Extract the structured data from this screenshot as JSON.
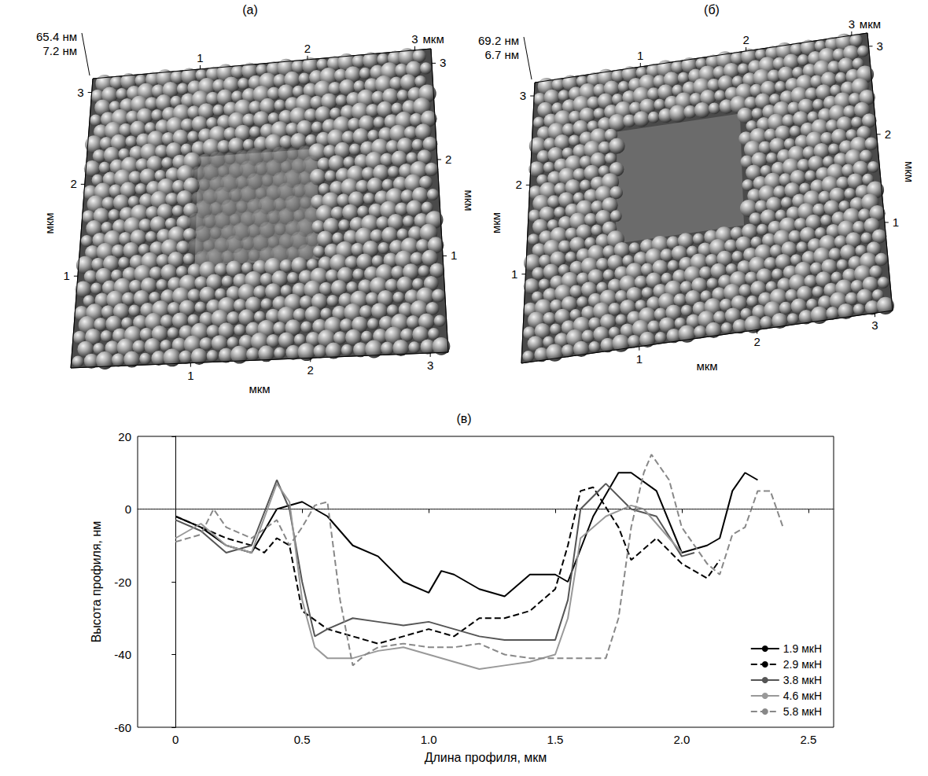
{
  "panels": [
    {
      "label": "(а)",
      "type": "afm_3d",
      "z_labels": [
        "65.4 нм",
        "7.2 нм"
      ],
      "xlim": [
        0,
        3.15
      ],
      "ylim": [
        0,
        3.15
      ],
      "xticks": [
        1,
        2,
        3
      ],
      "yticks": [
        1,
        2,
        3
      ],
      "x_unit": "мкм",
      "y_unit": "мкм"
    },
    {
      "label": "(б)",
      "type": "afm_3d",
      "z_labels": [
        "69.2 нм",
        "6.7 нм"
      ],
      "xlim": [
        0,
        3.15
      ],
      "ylim": [
        0,
        3.15
      ],
      "xticks": [
        1,
        2,
        3
      ],
      "yticks": [
        1,
        2,
        3
      ],
      "x_unit": "мкм",
      "y_unit": "мкм"
    }
  ],
  "chart_data": {
    "type": "line",
    "title": "(в)",
    "x_label": "Длина профиля, мкм",
    "y_label": "Высота профиля, нм",
    "xlim": [
      -0.15,
      2.6
    ],
    "xticks": [
      0,
      0.5,
      {
        "value": 1,
        "label": "1.0"
      },
      1.5,
      {
        "value": 2,
        "label": "2.0"
      },
      2.5
    ],
    "ylim": [
      -60,
      20
    ],
    "yticks": [
      -60,
      -40,
      -20,
      0,
      20
    ],
    "reference_y": 0,
    "grid": false,
    "legend": "lower right",
    "series": [
      {
        "name": "1.9 мкН",
        "color": "#000000",
        "line_style": "solid",
        "x": [
          0,
          0.1,
          0.2,
          0.3,
          0.4,
          0.5,
          0.6,
          0.7,
          0.8,
          0.9,
          1.0,
          1.05,
          1.1,
          1.2,
          1.3,
          1.4,
          1.5,
          1.55,
          1.65,
          1.75,
          1.8,
          1.9,
          2.0,
          2.1,
          2.15,
          2.2,
          2.25,
          2.3
        ],
        "values": [
          -2,
          -5,
          -10,
          -12,
          0,
          2,
          -2,
          -10,
          -13,
          -20,
          -23,
          -17,
          -18,
          -22,
          -24,
          -18,
          -18,
          -20,
          -2,
          10,
          10,
          5,
          -12,
          -10,
          -8,
          5,
          10,
          8
        ]
      },
      {
        "name": "2.9 мкН",
        "color": "#000000",
        "line_style": "dashed",
        "x": [
          0,
          0.1,
          0.2,
          0.3,
          0.35,
          0.4,
          0.45,
          0.5,
          0.6,
          0.7,
          0.8,
          0.9,
          1.0,
          1.1,
          1.2,
          1.3,
          1.4,
          1.5,
          1.55,
          1.6,
          1.65,
          1.75,
          1.8,
          1.9,
          2.0,
          2.1,
          2.15
        ],
        "values": [
          -2,
          -5,
          -8,
          -10,
          -12,
          -8,
          -10,
          -28,
          -33,
          -35,
          -37,
          -35,
          -33,
          -35,
          -30,
          -30,
          -28,
          -22,
          -10,
          5,
          6,
          -5,
          -14,
          -8,
          -15,
          -19,
          -14
        ]
      },
      {
        "name": "3.8 мкН",
        "color": "#555555",
        "line_style": "solid",
        "x": [
          0,
          0.1,
          0.2,
          0.3,
          0.4,
          0.45,
          0.5,
          0.55,
          0.6,
          0.7,
          0.8,
          0.9,
          1.0,
          1.1,
          1.2,
          1.3,
          1.4,
          1.5,
          1.55,
          1.6,
          1.7,
          1.8,
          1.9,
          2.0,
          2.05
        ],
        "values": [
          -3,
          -6,
          -12,
          -10,
          8,
          0,
          -20,
          -35,
          -33,
          -30,
          -31,
          -32,
          -31,
          -33,
          -35,
          -36,
          -36,
          -36,
          -25,
          0,
          7,
          0,
          -2,
          -13,
          -12
        ]
      },
      {
        "name": "4.6 мкН",
        "color": "#999999",
        "line_style": "solid",
        "x": [
          0,
          0.1,
          0.2,
          0.3,
          0.4,
          0.45,
          0.5,
          0.55,
          0.6,
          0.7,
          0.8,
          0.9,
          1.0,
          1.1,
          1.2,
          1.3,
          1.4,
          1.5,
          1.55,
          1.6,
          1.7,
          1.8,
          1.85,
          1.95,
          2.0
        ],
        "values": [
          -8,
          -4,
          -10,
          -12,
          7,
          2,
          -25,
          -38,
          -41,
          -41,
          -39,
          -38,
          -40,
          -42,
          -44,
          -43,
          -42,
          -40,
          -30,
          -8,
          -2,
          1,
          0,
          -8,
          -12
        ]
      },
      {
        "name": "5.8 мкН",
        "color": "#888888",
        "line_style": "dashed",
        "x": [
          0,
          0.1,
          0.15,
          0.2,
          0.3,
          0.4,
          0.45,
          0.5,
          0.55,
          0.6,
          0.65,
          0.7,
          0.75,
          0.8,
          0.9,
          1.0,
          1.1,
          1.2,
          1.3,
          1.4,
          1.5,
          1.6,
          1.7,
          1.75,
          1.8,
          1.85,
          1.88,
          1.95,
          2.0,
          2.1,
          2.15,
          2.2,
          2.25,
          2.3,
          2.35,
          2.4
        ],
        "values": [
          -9,
          -7,
          0,
          -5,
          -8,
          -3,
          -10,
          -5,
          1,
          2,
          -25,
          -43,
          -40,
          -38,
          -37,
          -38,
          -38,
          -37,
          -40,
          -41,
          -41,
          -41,
          -41,
          -30,
          -5,
          10,
          15,
          8,
          -5,
          -15,
          -18,
          -7,
          -5,
          5,
          5,
          -5
        ]
      }
    ]
  }
}
